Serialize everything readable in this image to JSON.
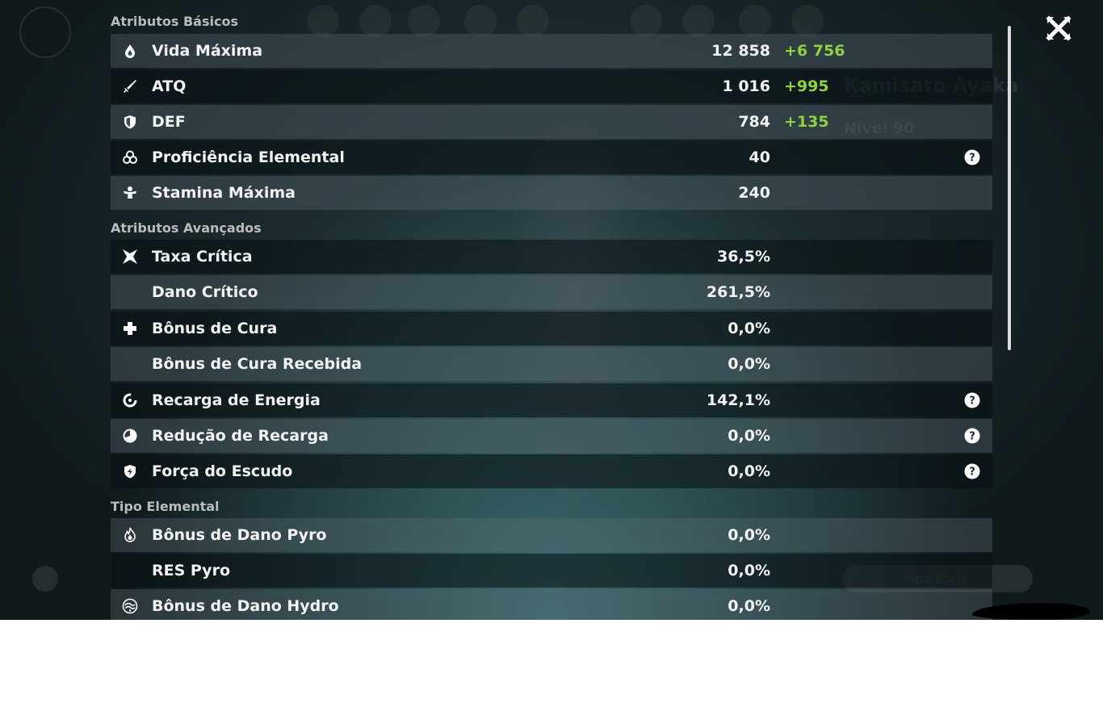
{
  "background": {
    "character_name": "Kamisato Ayaka",
    "character_level": "Nível 90",
    "appearance_button": "Aparência"
  },
  "sections": {
    "basic": "Atributos Básicos",
    "advanced": "Atributos Avançados",
    "elemental": "Tipo Elemental"
  },
  "stats": {
    "max_hp": {
      "label": "Vida Máxima",
      "value": "12 858",
      "bonus": "+6 756",
      "icon": "hp-drop-icon"
    },
    "atk": {
      "label": "ATQ",
      "value": "1 016",
      "bonus": "+995",
      "icon": "sword-icon"
    },
    "def": {
      "label": "DEF",
      "value": "784",
      "bonus": "+135",
      "icon": "shield-icon"
    },
    "elemental_mastery": {
      "label": "Proficiência Elemental",
      "value": "40",
      "icon": "elemental-mastery-icon"
    },
    "max_stamina": {
      "label": "Stamina Máxima",
      "value": "240",
      "icon": "stamina-icon"
    },
    "crit_rate": {
      "label": "Taxa Crítica",
      "value": "36,5%",
      "icon": "crit-star-icon"
    },
    "crit_dmg": {
      "label": "Dano Crítico",
      "value": "261,5%"
    },
    "healing_bonus": {
      "label": "Bônus de Cura",
      "value": "0,0%",
      "icon": "healing-cross-icon"
    },
    "incoming_healing": {
      "label": "Bônus de Cura Recebida",
      "value": "0,0%"
    },
    "energy_recharge": {
      "label": "Recarga de Energia",
      "value": "142,1%",
      "icon": "energy-recharge-icon"
    },
    "cd_reduction": {
      "label": "Redução de Recarga",
      "value": "0,0%",
      "icon": "cooldown-icon"
    },
    "shield_strength": {
      "label": "Força do Escudo",
      "value": "0,0%",
      "icon": "shield-strength-icon"
    },
    "pyro_dmg": {
      "label": "Bônus de Dano Pyro",
      "value": "0,0%",
      "icon": "pyro-icon"
    },
    "pyro_res": {
      "label": "RES Pyro",
      "value": "0,0%"
    },
    "hydro_dmg": {
      "label": "Bônus de Dano Hydro",
      "value": "0,0%",
      "icon": "hydro-icon"
    }
  },
  "colors": {
    "bonus_green": "#8fd13f",
    "text": "#f3f3f3",
    "section_title": "#b9bcbf"
  }
}
